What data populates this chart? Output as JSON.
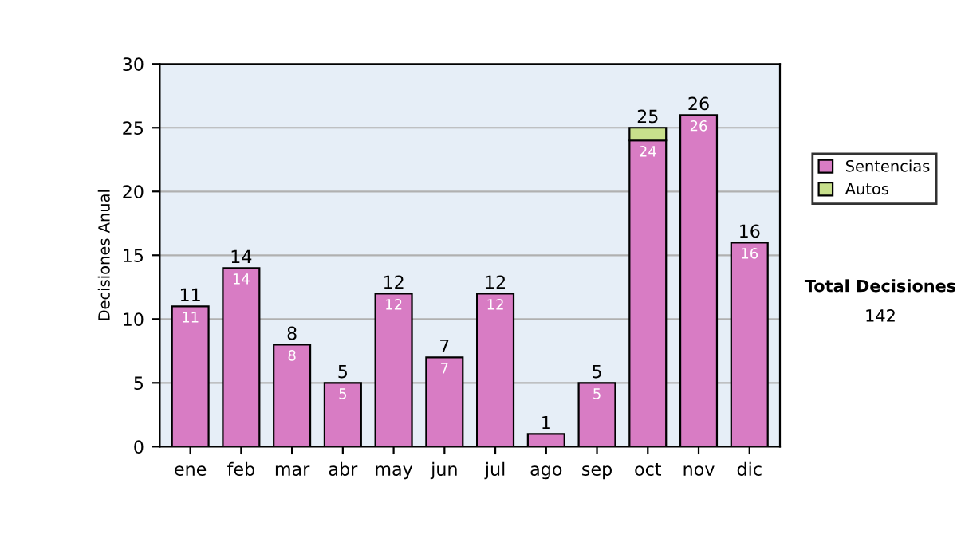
{
  "chart_data": {
    "type": "bar",
    "stacked": true,
    "ylabel": "Decisiones Anual",
    "categories": [
      "ene",
      "feb",
      "mar",
      "abr",
      "may",
      "jun",
      "jul",
      "ago",
      "sep",
      "oct",
      "nov",
      "dic"
    ],
    "series": [
      {
        "name": "Sentencias",
        "color": "#d87cc4",
        "values": [
          11,
          14,
          8,
          5,
          12,
          7,
          12,
          1,
          5,
          24,
          26,
          16
        ],
        "value_labels": [
          "11",
          "14",
          "8",
          "5",
          "12",
          "7",
          "12",
          null,
          "5",
          "24",
          "26",
          "16"
        ]
      },
      {
        "name": "Autos",
        "color": "#c8e08c",
        "values": [
          null,
          null,
          null,
          null,
          null,
          null,
          null,
          null,
          null,
          1,
          null,
          null
        ]
      }
    ],
    "totals": [
      "11",
      "14",
      "8",
      "5",
      "12",
      "7",
      "12",
      "1",
      "5",
      "25",
      "26",
      "16"
    ],
    "ylim": [
      0,
      30
    ],
    "yticks": [
      0,
      5,
      10,
      15,
      20,
      25,
      30
    ],
    "grid": "y",
    "legend": "right",
    "annotations": [
      "Total Decisiones",
      "142"
    ]
  }
}
